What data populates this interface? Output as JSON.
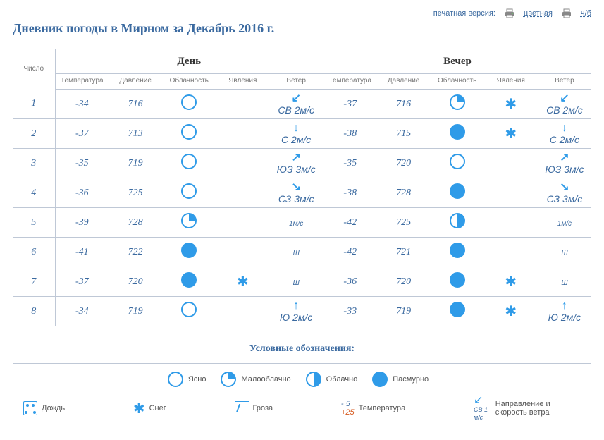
{
  "topbar": {
    "label": "печатная версия:",
    "link_color": "цветная",
    "link_bw": "ч/б"
  },
  "title": "Дневник погоды в Мирном за Декабрь 2016 г.",
  "table": {
    "day_header": "Число",
    "sections": [
      "День",
      "Вечер"
    ],
    "columns": [
      "Температура",
      "Давление",
      "Облачность",
      "Явления",
      "Ветер"
    ],
    "rows": [
      {
        "n": 1,
        "day": {
          "t": "-34",
          "p": "716",
          "c": "clear",
          "ph": "",
          "w": {
            "dir": "↙",
            "lbl": "СВ 2м/с"
          }
        },
        "eve": {
          "t": "-37",
          "p": "716",
          "c": "few",
          "ph": "snow",
          "w": {
            "dir": "↙",
            "lbl": "СВ 2м/с"
          }
        }
      },
      {
        "n": 2,
        "day": {
          "t": "-37",
          "p": "713",
          "c": "clear",
          "ph": "",
          "w": {
            "dir": "↓",
            "lbl": "С 2м/с"
          }
        },
        "eve": {
          "t": "-38",
          "p": "715",
          "c": "overcast",
          "ph": "snow",
          "w": {
            "dir": "↓",
            "lbl": "С 2м/с"
          }
        }
      },
      {
        "n": 3,
        "day": {
          "t": "-35",
          "p": "719",
          "c": "clear",
          "ph": "",
          "w": {
            "dir": "↗",
            "lbl": "ЮЗ 3м/с"
          }
        },
        "eve": {
          "t": "-35",
          "p": "720",
          "c": "clear",
          "ph": "",
          "w": {
            "dir": "↗",
            "lbl": "ЮЗ 3м/с"
          }
        }
      },
      {
        "n": 4,
        "day": {
          "t": "-36",
          "p": "725",
          "c": "clear",
          "ph": "",
          "w": {
            "dir": "↘",
            "lbl": "СЗ 3м/с"
          }
        },
        "eve": {
          "t": "-38",
          "p": "728",
          "c": "overcast",
          "ph": "",
          "w": {
            "dir": "↘",
            "lbl": "СЗ 3м/с"
          }
        }
      },
      {
        "n": 5,
        "day": {
          "t": "-39",
          "p": "728",
          "c": "few",
          "ph": "",
          "w": {
            "dir": "",
            "lbl": "1м/с"
          }
        },
        "eve": {
          "t": "-42",
          "p": "725",
          "c": "cloudy",
          "ph": "",
          "w": {
            "dir": "",
            "lbl": "1м/с"
          }
        }
      },
      {
        "n": 6,
        "day": {
          "t": "-41",
          "p": "722",
          "c": "overcast",
          "ph": "",
          "w": {
            "dir": "",
            "lbl": "Ш"
          }
        },
        "eve": {
          "t": "-42",
          "p": "721",
          "c": "overcast",
          "ph": "",
          "w": {
            "dir": "",
            "lbl": "Ш"
          }
        }
      },
      {
        "n": 7,
        "day": {
          "t": "-37",
          "p": "720",
          "c": "overcast",
          "ph": "snow",
          "w": {
            "dir": "",
            "lbl": "Ш"
          }
        },
        "eve": {
          "t": "-36",
          "p": "720",
          "c": "overcast",
          "ph": "snow",
          "w": {
            "dir": "",
            "lbl": "Ш"
          }
        }
      },
      {
        "n": 8,
        "day": {
          "t": "-34",
          "p": "719",
          "c": "clear",
          "ph": "",
          "w": {
            "dir": "↑",
            "lbl": "Ю 2м/с"
          }
        },
        "eve": {
          "t": "-33",
          "p": "719",
          "c": "overcast",
          "ph": "snow",
          "w": {
            "dir": "↑",
            "lbl": "Ю 2м/с"
          }
        }
      }
    ]
  },
  "legend": {
    "title": "Условные обозначения:",
    "clouds": [
      {
        "k": "clear",
        "label": "Ясно"
      },
      {
        "k": "few",
        "label": "Малооблачно"
      },
      {
        "k": "cloudy",
        "label": "Облачно"
      },
      {
        "k": "overcast",
        "label": "Пасмурно"
      }
    ],
    "rain": "Дождь",
    "snow": "Снег",
    "thunder": "Гроза",
    "temp_label": "Температура",
    "temp_neg": "- 5",
    "temp_pos": "+25",
    "wind_label": "Направление и скорость ветра",
    "wind_example": "СВ 1 м/с"
  },
  "colors": {
    "accent": "#2f9be8",
    "text": "#3b6aa0",
    "border": "#bfc8d6"
  }
}
